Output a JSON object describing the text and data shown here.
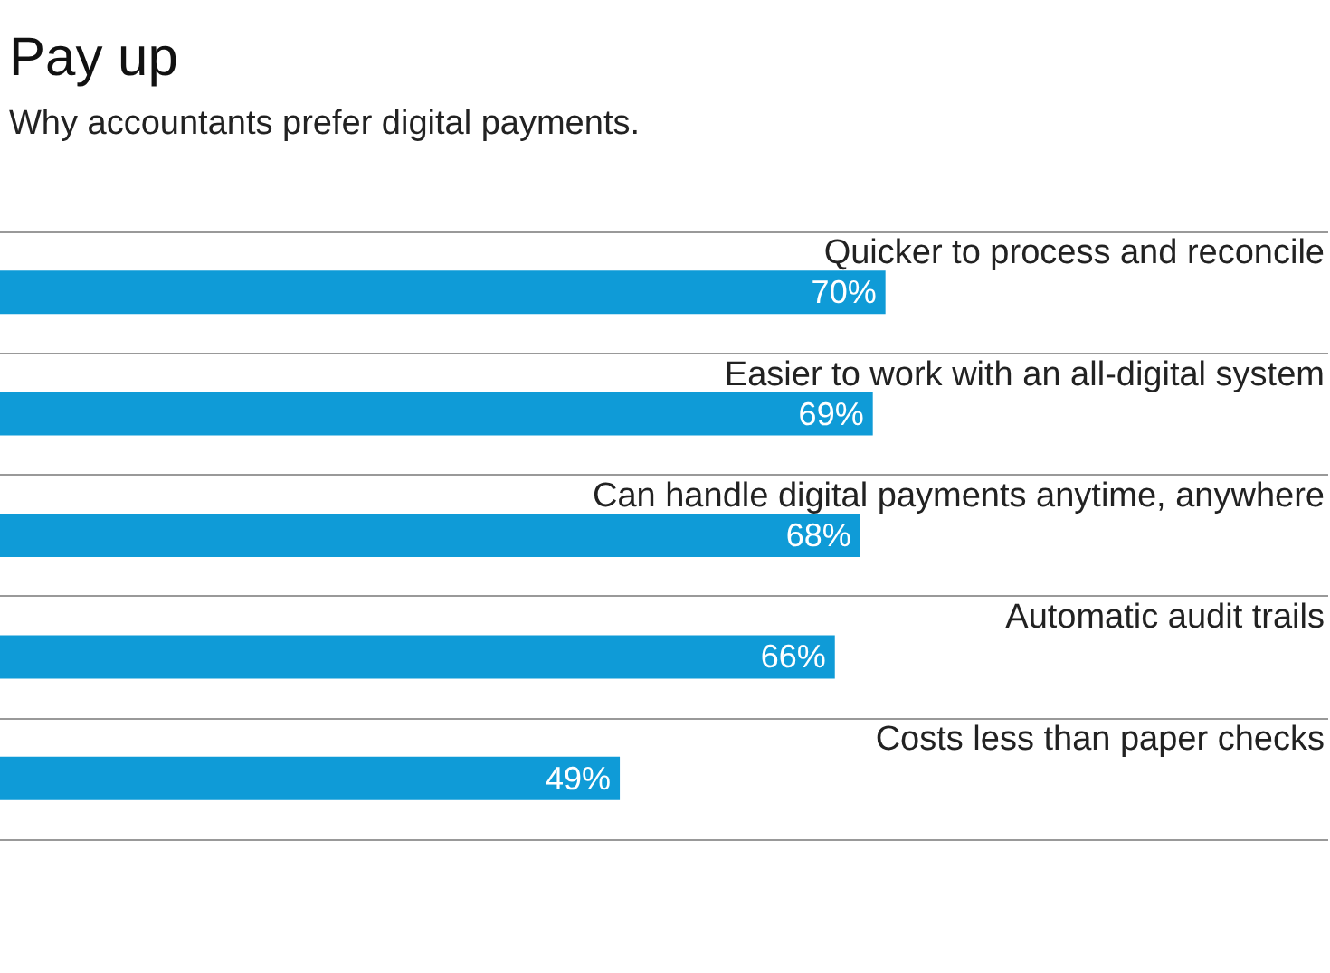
{
  "chart_data": {
    "type": "bar",
    "orientation": "horizontal",
    "title": "Pay up",
    "subtitle": "Why accountants prefer digital payments.",
    "categories": [
      "Quicker to process and reconcile",
      "Easier to work with an all-digital system",
      "Can handle digital payments anytime, anywhere",
      "Automatic audit trails",
      "Costs less than paper checks"
    ],
    "values": [
      70,
      69,
      68,
      66,
      49
    ],
    "value_labels": [
      "70%",
      "69%",
      "68%",
      "66%",
      "49%"
    ],
    "color": "#0f9bd7",
    "grid": "y"
  }
}
